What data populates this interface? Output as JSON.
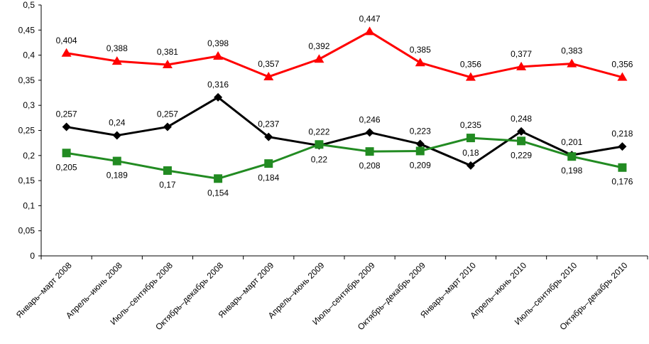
{
  "chart_data": {
    "type": "line",
    "title": "",
    "xlabel": "",
    "ylabel": "",
    "ylim": [
      0,
      0.5
    ],
    "y_ticks": [
      "0",
      "0,05",
      "0,1",
      "0,15",
      "0,2",
      "0,25",
      "0,3",
      "0,35",
      "0,4",
      "0,45",
      "0,5"
    ],
    "grid": false,
    "legend": "none",
    "categories": [
      "Январь–март 2008",
      "Апрель–июнь 2008",
      "Июль–сентябрь 2008",
      "Октябрь–декабрь 2008",
      "Январь–март 2009",
      "Апрель–июнь 2009",
      "Июль–сентябрь 2009",
      "Октябрь–декабрь 2009",
      "Январь–март 2010",
      "Апрель–июнь 2010",
      "Июль–сентябрь 2010",
      "Октябрь–декабрь 2010"
    ],
    "series": [
      {
        "name": "red",
        "color": "#ff0000",
        "marker": "triangle",
        "values": [
          0.404,
          0.388,
          0.381,
          0.398,
          0.357,
          0.392,
          0.447,
          0.385,
          0.356,
          0.377,
          0.383,
          0.356
        ],
        "labels": [
          "0,404",
          "0,388",
          "0,381",
          "0,398",
          "0,357",
          "0,392",
          "0,447",
          "0,385",
          "0,356",
          "0,377",
          "0,383",
          "0,356"
        ],
        "label_pos": [
          "above",
          "above",
          "above",
          "above",
          "above",
          "above",
          "above",
          "above",
          "above",
          "above",
          "above",
          "above"
        ]
      },
      {
        "name": "black",
        "color": "#000000",
        "marker": "diamond",
        "values": [
          0.257,
          0.24,
          0.257,
          0.316,
          0.237,
          0.22,
          0.246,
          0.223,
          0.18,
          0.248,
          0.201,
          0.218
        ],
        "labels": [
          "0,257",
          "0,24",
          "0,257",
          "0,316",
          "0,237",
          "0,22",
          "0,246",
          "0,223",
          "0,18",
          "0,248",
          "0,201",
          "0,218"
        ],
        "label_pos": [
          "above",
          "above",
          "above",
          "above",
          "above",
          "below",
          "above",
          "above",
          "above",
          "above",
          "above",
          "above"
        ]
      },
      {
        "name": "green",
        "color": "#228b22",
        "marker": "square",
        "values": [
          0.205,
          0.189,
          0.17,
          0.154,
          0.184,
          0.222,
          0.208,
          0.209,
          0.235,
          0.229,
          0.198,
          0.176
        ],
        "labels": [
          "0,205",
          "0,189",
          "0,17",
          "0,154",
          "0,184",
          "0,222",
          "0,208",
          "0,209",
          "0,235",
          "0,229",
          "0,198",
          "0,176"
        ],
        "label_pos": [
          "below",
          "below",
          "below",
          "below",
          "below",
          "above",
          "below",
          "below",
          "above",
          "below",
          "below",
          "below"
        ]
      }
    ]
  }
}
